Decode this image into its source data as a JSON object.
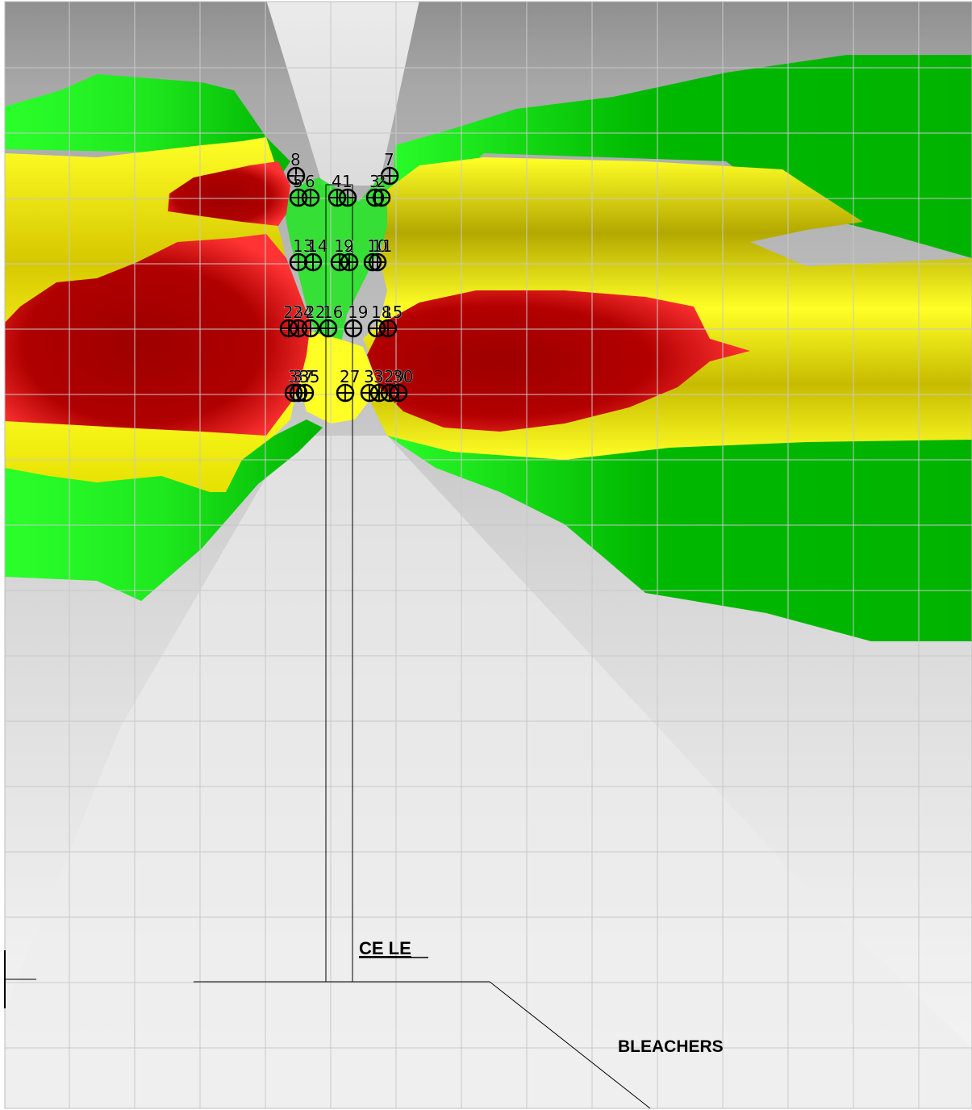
{
  "labels": {
    "center_line": "CE LE",
    "bleachers": "BLEACHERS"
  },
  "legend_colors": {
    "background_light": "#f2f2f2",
    "background_dark": "#8f8f8f",
    "green_light": "#2bff2b",
    "green_dark": "#00b300",
    "yellow_light": "#ffff26",
    "yellow_dark": "#b3a800",
    "red_light": "#ff3333",
    "red_dark": "#9e0000",
    "grid": "#c8c8c8"
  },
  "markers": [
    {
      "id": "marker-8",
      "num": "8"
    },
    {
      "id": "marker-7",
      "num": "7"
    },
    {
      "id": "marker-5",
      "num": "5"
    },
    {
      "id": "marker-6",
      "num": "6"
    },
    {
      "id": "marker-4",
      "num": "4"
    },
    {
      "id": "marker-1",
      "num": "1"
    },
    {
      "id": "marker-3",
      "num": "3"
    },
    {
      "id": "marker-2",
      "num": "2"
    },
    {
      "id": "marker-13",
      "num": "13"
    },
    {
      "id": "marker-14",
      "num": "14"
    },
    {
      "id": "marker-12",
      "num": "12"
    },
    {
      "id": "marker-9",
      "num": "9"
    },
    {
      "id": "marker-10",
      "num": "10"
    },
    {
      "id": "marker-11",
      "num": "11"
    },
    {
      "id": "marker-23",
      "num": "23"
    },
    {
      "id": "marker-24",
      "num": "24"
    },
    {
      "id": "marker-22",
      "num": "22"
    },
    {
      "id": "marker-16",
      "num": "16"
    },
    {
      "id": "marker-19",
      "num": "19"
    },
    {
      "id": "marker-18",
      "num": "18"
    },
    {
      "id": "marker-15",
      "num": "15"
    },
    {
      "id": "marker-36",
      "num": "36"
    },
    {
      "id": "marker-37",
      "num": "37"
    },
    {
      "id": "marker-35",
      "num": "35"
    },
    {
      "id": "marker-27",
      "num": "27"
    },
    {
      "id": "marker-33",
      "num": "33"
    },
    {
      "id": "marker-32",
      "num": "32"
    },
    {
      "id": "marker-29",
      "num": "29"
    },
    {
      "id": "marker-30",
      "num": "30"
    }
  ]
}
